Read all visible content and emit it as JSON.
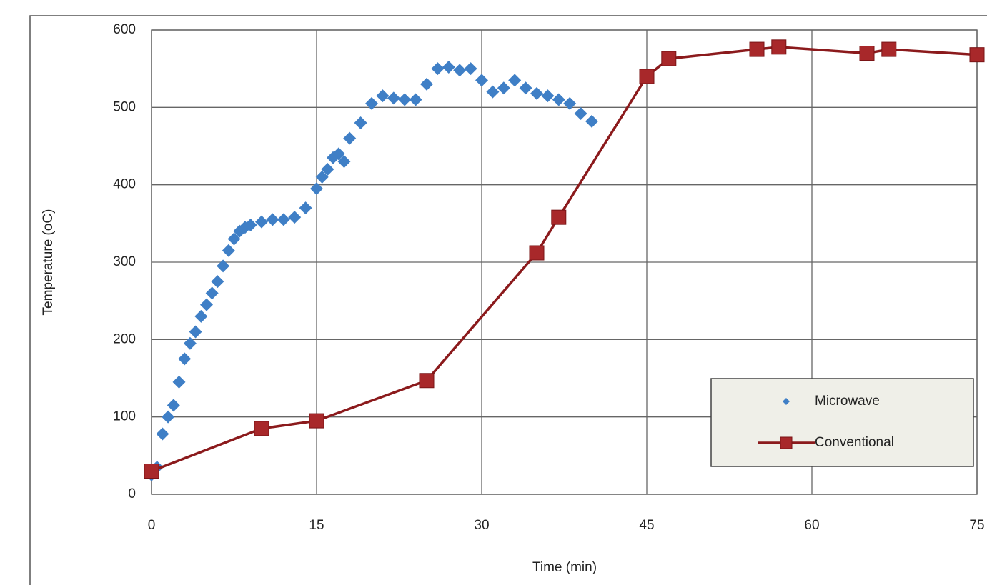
{
  "chart_data": {
    "type": "scatter",
    "xlabel": "Time (min)",
    "ylabel": "Temperature (oC)",
    "xlim": [
      0,
      75
    ],
    "xticks": [
      0,
      15,
      30,
      45,
      60,
      75
    ],
    "ylim": [
      0,
      600
    ],
    "yticks": [
      0,
      100,
      200,
      300,
      400,
      500,
      600
    ],
    "grid": true,
    "legend": "lower right",
    "series": [
      {
        "name": "Microwave",
        "color": "#3f7fc6",
        "marker": "diamond",
        "lines": false,
        "x": [
          0,
          0.5,
          1,
          1.5,
          2,
          2.5,
          3,
          3.5,
          4,
          4.5,
          5,
          5.5,
          6,
          6.5,
          7,
          7.5,
          8,
          8.5,
          9,
          10,
          11,
          12,
          13,
          14,
          15,
          15.5,
          16,
          16.5,
          17,
          17.5,
          18,
          19,
          20,
          21,
          22,
          23,
          24,
          25,
          26,
          27,
          28,
          29,
          30,
          31,
          32,
          33,
          34,
          35,
          36,
          37,
          38,
          39,
          40
        ],
        "values": [
          25,
          35,
          78,
          100,
          115,
          145,
          175,
          195,
          210,
          230,
          245,
          260,
          275,
          295,
          315,
          330,
          340,
          345,
          348,
          352,
          355,
          355,
          358,
          370,
          395,
          410,
          420,
          435,
          440,
          430,
          460,
          480,
          505,
          515,
          512,
          510,
          510,
          530,
          550,
          552,
          548,
          550,
          535,
          520,
          525,
          535,
          525,
          518,
          515,
          510,
          505,
          492,
          482
        ]
      },
      {
        "name": "Conventional",
        "color": "#a8282a",
        "marker": "square",
        "lines": true,
        "x": [
          0,
          10,
          15,
          25,
          35,
          37,
          45,
          47,
          55,
          57,
          65,
          67,
          75
        ],
        "values": [
          30,
          85,
          95,
          147,
          312,
          358,
          540,
          563,
          575,
          578,
          570,
          575,
          568
        ]
      }
    ]
  }
}
